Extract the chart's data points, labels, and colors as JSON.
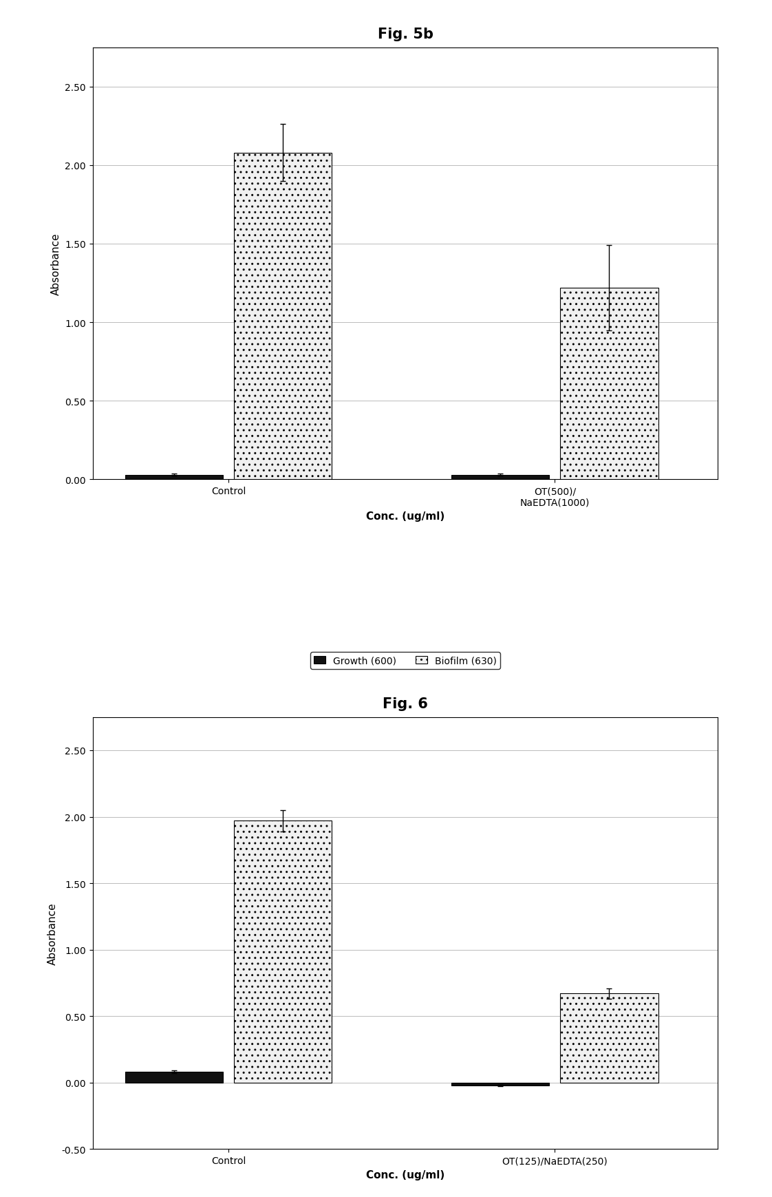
{
  "fig5b": {
    "title": "Fig. 5b",
    "categories": [
      "Control",
      "OT(500)/\nNaEDTA(1000)"
    ],
    "growth_values": [
      0.03,
      0.03
    ],
    "biofilm_values": [
      2.08,
      1.22
    ],
    "growth_errors": [
      0.005,
      0.005
    ],
    "biofilm_errors": [
      0.18,
      0.27
    ],
    "ylabel": "Absorbance",
    "xlabel": "Conc. (ug/ml)",
    "ylim": [
      0.0,
      2.75
    ],
    "yticks": [
      0.0,
      0.5,
      1.0,
      1.5,
      2.0,
      2.5
    ],
    "yticklabels": [
      "0.00",
      "0.50",
      "1.00",
      "1.50",
      "2.00",
      "2.50"
    ]
  },
  "fig6": {
    "title": "Fig. 6",
    "categories": [
      "Control",
      "OT(125)/NaEDTA(250)"
    ],
    "growth_values": [
      0.08,
      -0.02
    ],
    "biofilm_values": [
      1.97,
      0.67
    ],
    "growth_errors": [
      0.01,
      0.005
    ],
    "biofilm_errors": [
      0.08,
      0.04
    ],
    "ylabel": "Absorbance",
    "xlabel": "Conc. (ug/ml)",
    "ylim": [
      -0.5,
      2.75
    ],
    "yticks": [
      -0.5,
      0.0,
      0.5,
      1.0,
      1.5,
      2.0,
      2.5
    ],
    "yticklabels": [
      "-0.50",
      "0.00",
      "0.50",
      "1.00",
      "1.50",
      "2.00",
      "2.50"
    ]
  },
  "bar_width": 0.18,
  "growth_color": "#111111",
  "biofilm_color": "#f0f0f0",
  "biofilm_hatch": "..",
  "legend_labels": [
    "Growth (600)",
    "Biofilm (630)"
  ],
  "background_color": "#ffffff",
  "grid_color": "#bbbbbb",
  "font_family": "Arial",
  "title_fontsize": 15,
  "label_fontsize": 11,
  "tick_fontsize": 10,
  "legend_fontsize": 10,
  "group_centers": [
    0.3,
    0.9
  ]
}
